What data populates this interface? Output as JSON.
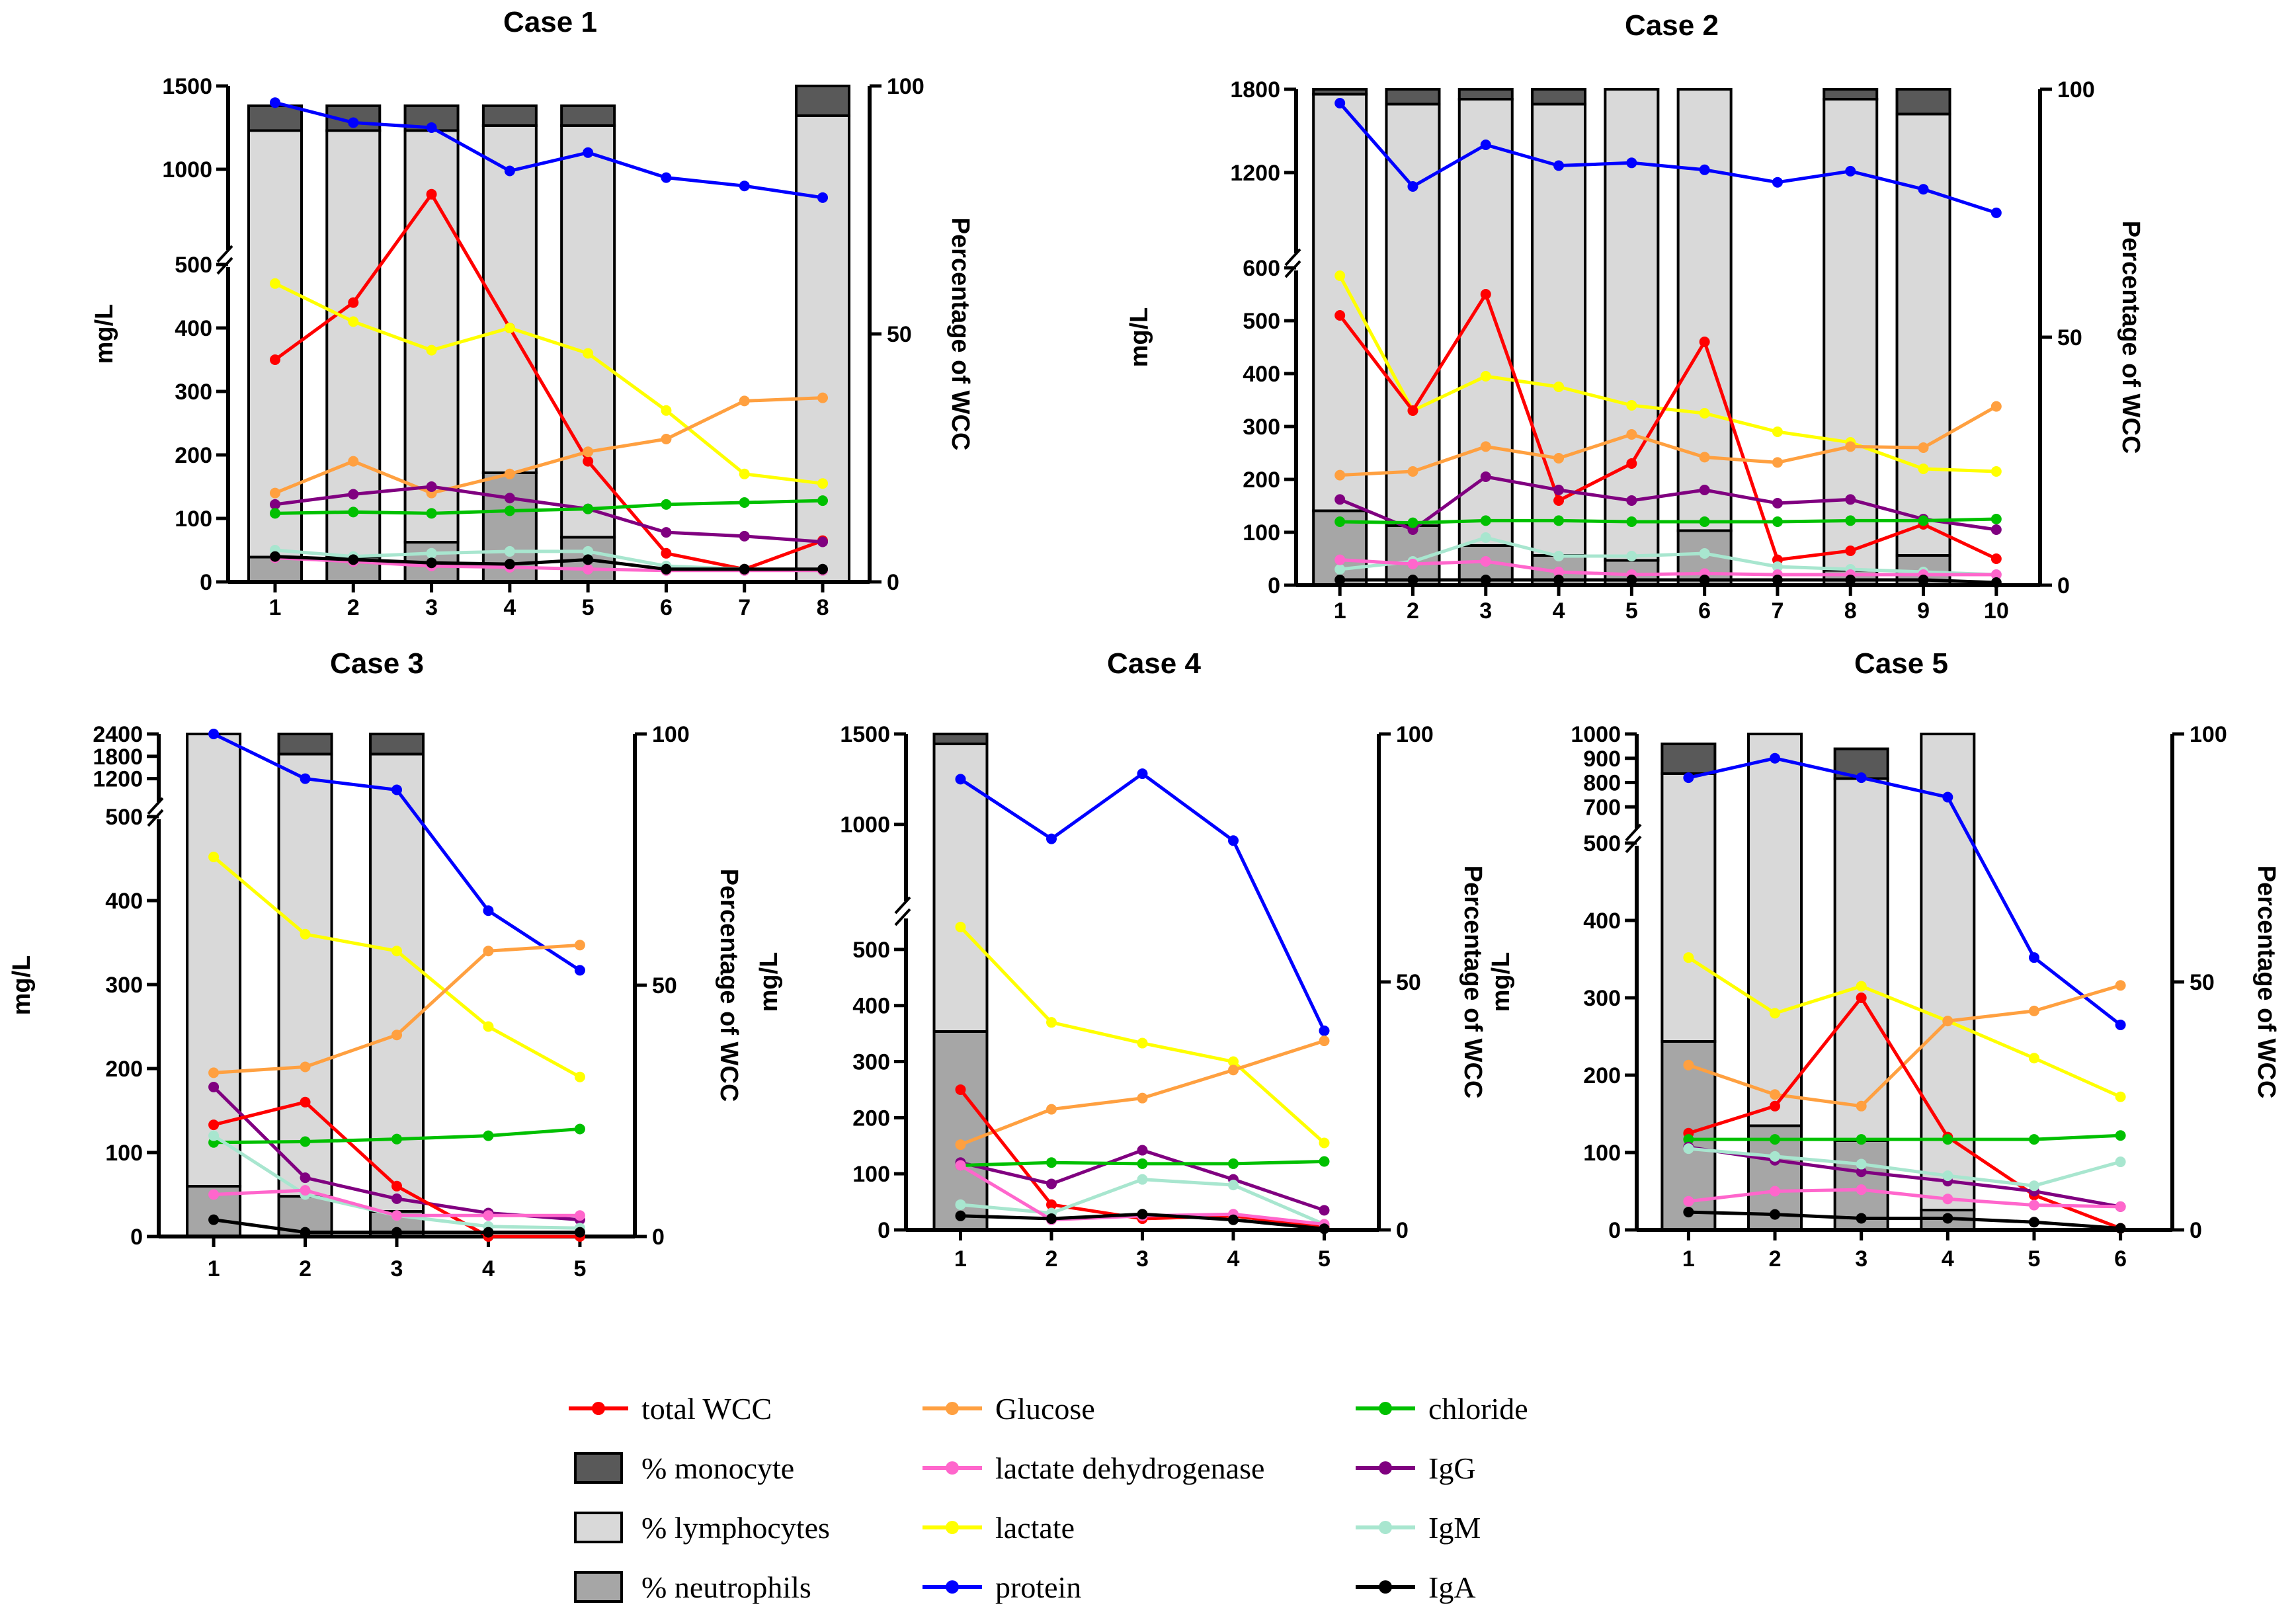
{
  "figure": {
    "legend_title": ""
  },
  "legend": {
    "items": [
      {
        "key": "wcc",
        "label": "total WCC",
        "kind": "line",
        "color": "#ff0000"
      },
      {
        "key": "mono",
        "label": "% monocyte",
        "kind": "box",
        "color": "#595959"
      },
      {
        "key": "lymph",
        "label": "% lymphocytes",
        "kind": "box",
        "color": "#d9d9d9"
      },
      {
        "key": "neut",
        "label": "% neutrophils",
        "kind": "box",
        "color": "#a6a6a6"
      },
      {
        "key": "glucose",
        "label": "Glucose",
        "kind": "line",
        "color": "#ffa040"
      },
      {
        "key": "ldh",
        "label": "lactate dehydrogenase",
        "kind": "line",
        "color": "#ff66cc"
      },
      {
        "key": "lactate",
        "label": "lactate",
        "kind": "line",
        "color": "#ffff00"
      },
      {
        "key": "protein",
        "label": "protein",
        "kind": "line",
        "color": "#0000ff"
      },
      {
        "key": "chloride",
        "label": "chloride",
        "kind": "line",
        "color": "#00c000"
      },
      {
        "key": "igg",
        "label": "IgG",
        "kind": "line",
        "color": "#800080"
      },
      {
        "key": "igm",
        "label": "IgM",
        "kind": "line",
        "color": "#a8e6cf"
      },
      {
        "key": "iga",
        "label": "IgA",
        "kind": "line",
        "color": "#000000"
      }
    ]
  },
  "chart_data": [
    {
      "type": "bar+line",
      "title": "Case 1",
      "ylabel": "mg/L",
      "y2label": "Percentage of WCC",
      "x": [
        1,
        2,
        3,
        4,
        5,
        6,
        7,
        8
      ],
      "yticks_low": [
        0,
        100,
        200,
        300,
        400,
        500
      ],
      "yticks_high": [
        1000,
        1500
      ],
      "ylim_low": [
        0,
        500
      ],
      "ylim_high": [
        500,
        1500
      ],
      "y2lim": [
        0,
        100
      ],
      "y2ticks": [
        0,
        50,
        100
      ],
      "bars": [
        {
          "x": 1,
          "neut": 5,
          "lymph": 86,
          "mono": 5
        },
        {
          "x": 2,
          "neut": 5,
          "lymph": 86,
          "mono": 5
        },
        {
          "x": 3,
          "neut": 8,
          "lymph": 83,
          "mono": 5
        },
        {
          "x": 4,
          "neut": 22,
          "lymph": 70,
          "mono": 4
        },
        {
          "x": 5,
          "neut": 9,
          "lymph": 83,
          "mono": 4
        },
        {
          "x": 8,
          "neut": 0,
          "lymph": 94,
          "mono": 6
        }
      ],
      "series": [
        {
          "key": "wcc",
          "values": [
            350,
            440,
            850,
            400,
            190,
            45,
            20,
            65
          ]
        },
        {
          "key": "protein",
          "values": [
            1400,
            1280,
            1250,
            990,
            1100,
            950,
            900,
            830
          ]
        },
        {
          "key": "lactate",
          "values": [
            470,
            410,
            365,
            400,
            360,
            270,
            170,
            155
          ]
        },
        {
          "key": "glucose",
          "values": [
            140,
            190,
            140,
            170,
            205,
            225,
            285,
            290
          ]
        },
        {
          "key": "igg",
          "values": [
            122,
            138,
            150,
            132,
            115,
            78,
            72,
            63
          ]
        },
        {
          "key": "chloride",
          "values": [
            108,
            110,
            108,
            112,
            115,
            122,
            125,
            128
          ]
        },
        {
          "key": "igm",
          "values": [
            50,
            40,
            45,
            48,
            48,
            25,
            20,
            18
          ]
        },
        {
          "key": "ldh",
          "values": [
            38,
            32,
            25,
            23,
            20,
            18,
            18,
            18
          ]
        },
        {
          "key": "iga",
          "values": [
            40,
            35,
            30,
            28,
            35,
            20,
            20,
            20
          ]
        }
      ]
    },
    {
      "type": "bar+line",
      "title": "Case 2",
      "ylabel": "mg/L",
      "y2label": "Percentage of WCC",
      "x": [
        1,
        2,
        3,
        4,
        5,
        6,
        7,
        8,
        9,
        10
      ],
      "yticks_low": [
        0,
        100,
        200,
        300,
        400,
        500,
        600
      ],
      "yticks_high": [
        1200,
        1800
      ],
      "ylim_low": [
        0,
        600
      ],
      "ylim_high": [
        600,
        1800
      ],
      "y2lim": [
        0,
        100
      ],
      "y2ticks": [
        0,
        50,
        100
      ],
      "bars": [
        {
          "x": 1,
          "neut": 15,
          "lymph": 84,
          "mono": 1
        },
        {
          "x": 2,
          "neut": 12,
          "lymph": 85,
          "mono": 3
        },
        {
          "x": 3,
          "neut": 8,
          "lymph": 90,
          "mono": 2
        },
        {
          "x": 4,
          "neut": 6,
          "lymph": 91,
          "mono": 3
        },
        {
          "x": 5,
          "neut": 5,
          "lymph": 95,
          "mono": 0
        },
        {
          "x": 6,
          "neut": 11,
          "lymph": 89,
          "mono": 0
        },
        {
          "x": 8,
          "neut": 3,
          "lymph": 95,
          "mono": 2
        },
        {
          "x": 9,
          "neut": 6,
          "lymph": 89,
          "mono": 5
        }
      ],
      "series": [
        {
          "key": "protein",
          "values": [
            1700,
            1100,
            1400,
            1250,
            1270,
            1220,
            1130,
            1210,
            1080,
            910
          ]
        },
        {
          "key": "lactate",
          "values": [
            585,
            330,
            395,
            375,
            340,
            325,
            290,
            270,
            220,
            215
          ]
        },
        {
          "key": "wcc",
          "values": [
            510,
            330,
            550,
            160,
            230,
            460,
            48,
            65,
            115,
            50
          ]
        },
        {
          "key": "glucose",
          "values": [
            208,
            215,
            262,
            240,
            285,
            242,
            232,
            262,
            260,
            338
          ]
        },
        {
          "key": "igg",
          "values": [
            162,
            105,
            205,
            180,
            160,
            180,
            155,
            162,
            125,
            105
          ]
        },
        {
          "key": "chloride",
          "values": [
            120,
            118,
            122,
            122,
            120,
            120,
            120,
            122,
            122,
            125
          ]
        },
        {
          "key": "igm",
          "values": [
            30,
            45,
            90,
            55,
            55,
            60,
            35,
            30,
            25,
            20
          ]
        },
        {
          "key": "ldh",
          "values": [
            48,
            40,
            45,
            25,
            20,
            22,
            20,
            20,
            20,
            20
          ]
        },
        {
          "key": "iga",
          "values": [
            10,
            10,
            10,
            10,
            10,
            10,
            10,
            10,
            10,
            5
          ]
        }
      ]
    },
    {
      "type": "bar+line",
      "title": "Case 3",
      "ylabel": "mg/L",
      "y2label": "Percentage of WCC",
      "x": [
        1,
        2,
        3,
        4,
        5
      ],
      "yticks_low": [
        0,
        100,
        200,
        300,
        400,
        500
      ],
      "yticks_high": [
        1200,
        1800,
        2400
      ],
      "ylim_low": [
        0,
        500
      ],
      "ylim_high": [
        500,
        2400
      ],
      "y2lim": [
        0,
        100
      ],
      "y2ticks": [
        0,
        50,
        100
      ],
      "bars": [
        {
          "x": 1,
          "neut": 10,
          "lymph": 90,
          "mono": 0
        },
        {
          "x": 2,
          "neut": 8,
          "lymph": 88,
          "mono": 4
        },
        {
          "x": 3,
          "neut": 5,
          "lymph": 91,
          "mono": 4
        }
      ],
      "series": [
        {
          "key": "protein",
          "values": [
            2400,
            1200,
            900,
            388,
            317
          ]
        },
        {
          "key": "lactate",
          "values": [
            452,
            360,
            340,
            250,
            190
          ]
        },
        {
          "key": "glucose",
          "values": [
            195,
            202,
            240,
            340,
            347
          ]
        },
        {
          "key": "igg",
          "values": [
            178,
            70,
            45,
            28,
            20
          ]
        },
        {
          "key": "wcc",
          "values": [
            133,
            160,
            60,
            0,
            0
          ]
        },
        {
          "key": "chloride",
          "values": [
            112,
            113,
            116,
            120,
            128
          ]
        },
        {
          "key": "igm",
          "values": [
            120,
            50,
            25,
            12,
            10
          ]
        },
        {
          "key": "ldh",
          "values": [
            50,
            55,
            25,
            25,
            25
          ]
        },
        {
          "key": "iga",
          "values": [
            20,
            5,
            5,
            5,
            5
          ]
        }
      ]
    },
    {
      "type": "bar+line",
      "title": "Case 4",
      "ylabel": "mg/L",
      "y2label": "Percentage of WCC",
      "x": [
        1,
        2,
        3,
        4,
        5
      ],
      "yticks_low": [
        0,
        100,
        200,
        300,
        400,
        500
      ],
      "yticks_high": [
        1000,
        1500
      ],
      "ylim_low": [
        0,
        560
      ],
      "ylim_high": [
        560,
        1500
      ],
      "y2lim": [
        0,
        100
      ],
      "y2ticks": [
        0,
        50,
        100
      ],
      "bars": [
        {
          "x": 1,
          "neut": 40,
          "lymph": 58,
          "mono": 2
        }
      ],
      "series": [
        {
          "key": "protein",
          "values": [
            1250,
            920,
            1280,
            910,
            355
          ]
        },
        {
          "key": "lactate",
          "values": [
            540,
            370,
            333,
            300,
            155
          ]
        },
        {
          "key": "glucose",
          "values": [
            152,
            215,
            235,
            285,
            337
          ]
        },
        {
          "key": "wcc",
          "values": [
            250,
            45,
            20,
            25,
            5
          ]
        },
        {
          "key": "igg",
          "values": [
            120,
            82,
            142,
            90,
            35
          ]
        },
        {
          "key": "chloride",
          "values": [
            115,
            120,
            118,
            118,
            122
          ]
        },
        {
          "key": "igm",
          "values": [
            45,
            30,
            90,
            80,
            10
          ]
        },
        {
          "key": "ldh",
          "values": [
            115,
            18,
            25,
            28,
            10
          ]
        },
        {
          "key": "iga",
          "values": [
            25,
            20,
            28,
            18,
            2
          ]
        }
      ]
    },
    {
      "type": "bar+line",
      "title": "Case 5",
      "ylabel": "mg/L",
      "y2label": "Percentage of WCC",
      "x": [
        1,
        2,
        3,
        4,
        5,
        6
      ],
      "yticks_low": [
        0,
        100,
        200,
        300,
        400,
        500
      ],
      "yticks_high": [
        700,
        800,
        900,
        1000
      ],
      "ylim_low": [
        0,
        500
      ],
      "ylim_high": [
        600,
        1000
      ],
      "y2lim": [
        0,
        100
      ],
      "y2ticks": [
        0,
        50,
        100
      ],
      "bars": [
        {
          "x": 1,
          "neut": 38,
          "lymph": 54,
          "mono": 6
        },
        {
          "x": 2,
          "neut": 21,
          "lymph": 79,
          "mono": 0
        },
        {
          "x": 3,
          "neut": 18,
          "lymph": 73,
          "mono": 6
        },
        {
          "x": 4,
          "neut": 4,
          "lymph": 96,
          "mono": 0
        }
      ],
      "series": [
        {
          "key": "protein",
          "values": [
            820,
            900,
            820,
            740,
            352,
            265
          ]
        },
        {
          "key": "lactate",
          "values": [
            352,
            280,
            315,
            270,
            222,
            172
          ]
        },
        {
          "key": "glucose",
          "values": [
            213,
            175,
            160,
            270,
            283,
            316
          ]
        },
        {
          "key": "wcc",
          "values": [
            125,
            160,
            300,
            120,
            45,
            2
          ]
        },
        {
          "key": "chloride",
          "values": [
            117,
            117,
            117,
            117,
            117,
            122
          ]
        },
        {
          "key": "igg",
          "values": [
            107,
            90,
            75,
            63,
            50,
            30
          ]
        },
        {
          "key": "igm",
          "values": [
            105,
            95,
            85,
            70,
            57,
            88
          ]
        },
        {
          "key": "ldh",
          "values": [
            37,
            50,
            52,
            40,
            32,
            30
          ]
        },
        {
          "key": "iga",
          "values": [
            23,
            20,
            15,
            15,
            10,
            2
          ]
        }
      ]
    }
  ]
}
